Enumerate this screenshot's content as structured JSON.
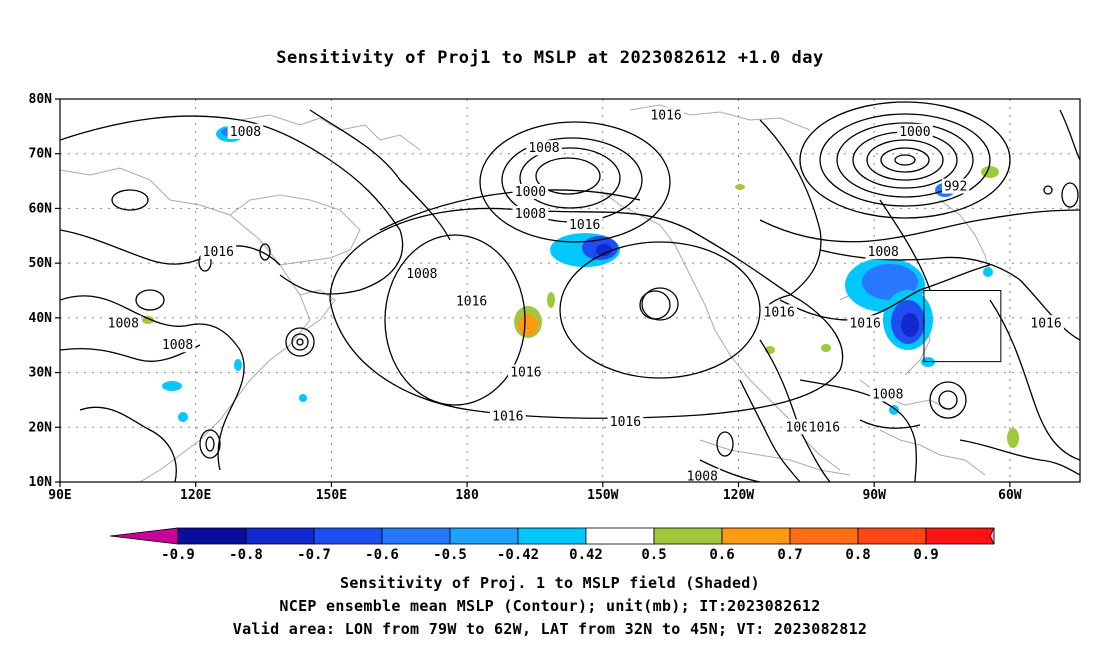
{
  "title": "Sensitivity of Proj1 to MSLP at 2023082612 +1.0 day",
  "map": {
    "lat_ticks": [
      "80N",
      "70N",
      "60N",
      "50N",
      "40N",
      "30N",
      "20N",
      "10N"
    ],
    "lon_ticks": [
      "90E",
      "120E",
      "150E",
      "180",
      "150W",
      "120W",
      "90W",
      "60W"
    ],
    "contour_labels": [
      {
        "text": "1008",
        "lon": 131,
        "lat": 74
      },
      {
        "text": "1016",
        "lon": -136,
        "lat": 77
      },
      {
        "text": "1008",
        "lon": -163,
        "lat": 71
      },
      {
        "text": "1000",
        "lon": -81,
        "lat": 74
      },
      {
        "text": "1000",
        "lon": -166,
        "lat": 63
      },
      {
        "text": "1008",
        "lon": -166,
        "lat": 59
      },
      {
        "text": "992",
        "lon": -72,
        "lat": 64
      },
      {
        "text": "1016",
        "lon": -154,
        "lat": 57
      },
      {
        "text": "1016",
        "lon": 125,
        "lat": 52
      },
      {
        "text": "1008",
        "lon": 170,
        "lat": 48
      },
      {
        "text": "1008",
        "lon": -88,
        "lat": 52
      },
      {
        "text": "1016",
        "lon": -179,
        "lat": 43
      },
      {
        "text": "1016",
        "lon": -111,
        "lat": 41
      },
      {
        "text": "1016",
        "lon": -92,
        "lat": 39
      },
      {
        "text": "1016",
        "lon": -52,
        "lat": 39
      },
      {
        "text": "1008",
        "lon": 104,
        "lat": 39
      },
      {
        "text": "1008",
        "lon": 116,
        "lat": 35
      },
      {
        "text": "1016",
        "lon": -167,
        "lat": 30
      },
      {
        "text": "1008",
        "lon": -87,
        "lat": 26
      },
      {
        "text": "1016",
        "lon": -171,
        "lat": 22
      },
      {
        "text": "1016",
        "lon": -145,
        "lat": 21
      },
      {
        "text": "100",
        "lon": -107,
        "lat": 20
      },
      {
        "text": "1016",
        "lon": -101,
        "lat": 20
      },
      {
        "text": "1008",
        "lon": -128,
        "lat": 11
      }
    ],
    "valid_box": {
      "lon_min": -79,
      "lon_max": -62,
      "lat_min": 32,
      "lat_max": 45
    }
  },
  "colorbar": {
    "labels": [
      "-0.9",
      "-0.8",
      "-0.7",
      "-0.6",
      "-0.5",
      "-0.42",
      "0.42",
      "0.5",
      "0.6",
      "0.7",
      "0.8",
      "0.9"
    ],
    "colors": [
      "#c8009a",
      "#0a0c9c",
      "#1428d2",
      "#1e4ef0",
      "#2878ff",
      "#1ea0ff",
      "#00c8ff",
      "#ffffff",
      "#a0c83c",
      "#ff9a14",
      "#ff6e14",
      "#ff4614",
      "#ff1414",
      "#ff9ad2"
    ]
  },
  "captions": {
    "line1": "Sensitivity of Proj. 1 to MSLP field (Shaded)",
    "line2": "NCEP ensemble mean MSLP (Contour); unit(mb); IT:2023082612",
    "line3": "Valid area: LON from 79W to 62W, LAT from 32N to 45N; VT: 2023082812"
  }
}
